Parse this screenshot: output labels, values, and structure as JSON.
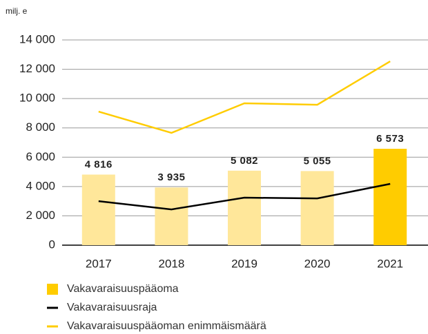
{
  "chart_data": {
    "type": "bar",
    "y_label": "milj. e",
    "categories": [
      "2017",
      "2018",
      "2019",
      "2020",
      "2021"
    ],
    "ylim": [
      0,
      14000
    ],
    "yticks": [
      0,
      {
        "value": 2000,
        "label": "2 000"
      },
      {
        "value": 4000,
        "label": "4 000"
      },
      {
        "value": 6000,
        "label": "6 000"
      },
      {
        "value": 8000,
        "label": "8 000"
      },
      {
        "value": 10000,
        "label": "10 000"
      },
      {
        "value": 12000,
        "label": "12 000"
      },
      {
        "value": 14000,
        "label": "14 000"
      }
    ],
    "grid": true,
    "series": [
      {
        "name": "Vakavaraisuuspääoma",
        "type": "bar",
        "color": "#ffcc00",
        "colors": [
          "#ffe79a",
          "#ffe79a",
          "#ffe79a",
          "#ffe79a",
          "#ffcc00"
        ],
        "values": [
          4816,
          3935,
          5082,
          5055,
          6573
        ],
        "value_labels": [
          "4 816",
          "3 935",
          "5 082",
          "5 055",
          "6 573"
        ]
      },
      {
        "name": "Vakavaraisuusraja",
        "type": "line",
        "color": "#000000",
        "values": [
          3000,
          2440,
          3240,
          3190,
          4180
        ]
      },
      {
        "name": "Vakavaraisuuspääoman enimmäismäärä",
        "type": "line",
        "color": "#ffcc00",
        "values": [
          9110,
          7660,
          9680,
          9580,
          12540
        ]
      }
    ]
  }
}
